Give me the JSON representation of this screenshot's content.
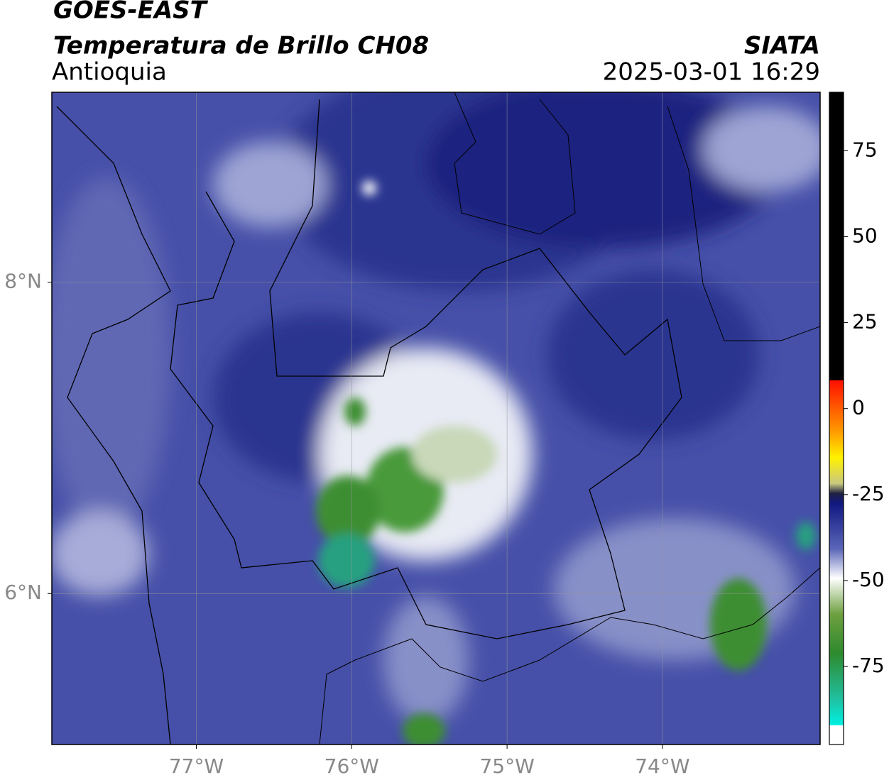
{
  "header": {
    "title": "GOES-EAST",
    "subtitle": "Temperatura de Brillo CH08",
    "region": "Antioquia",
    "source": "SIATA",
    "datetime": "2025-03-01 16:29"
  },
  "map": {
    "xlim": [
      -77.93,
      -72.985
    ],
    "ylim": [
      5.03,
      9.22
    ],
    "xticks": [
      {
        "value": -77,
        "label": "77°W"
      },
      {
        "value": -76,
        "label": "76°W"
      },
      {
        "value": -75,
        "label": "75°W"
      },
      {
        "value": -74,
        "label": "74°W"
      }
    ],
    "yticks": [
      {
        "value": 8,
        "label": "8°N"
      },
      {
        "value": 6,
        "label": "6°N"
      }
    ],
    "grid": true
  },
  "colorbar": {
    "lim": [
      -97.7,
      92
    ],
    "ticks": [
      75,
      50,
      25,
      0,
      -25,
      -50,
      -75
    ]
  }
}
